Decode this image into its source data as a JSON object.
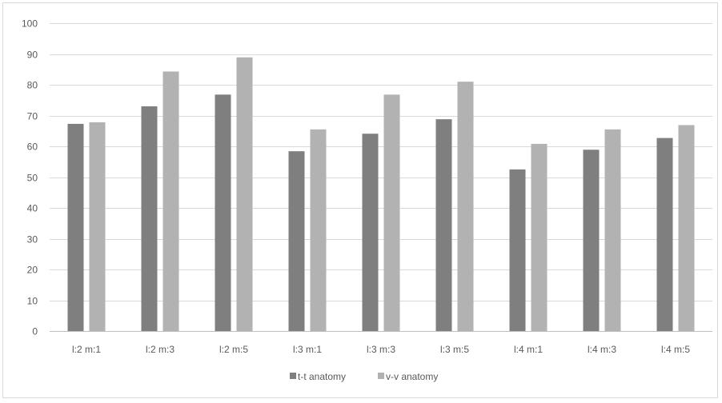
{
  "chart_data": {
    "type": "bar",
    "categories": [
      "l:2 m:1",
      "l:2 m:3",
      "l:2 m:5",
      "l:3 m:1",
      "l:3 m:3",
      "l:3 m:5",
      "l:4 m:1",
      "l:4 m:3",
      "l:4 m:5"
    ],
    "series": [
      {
        "name": "t-t anatomy",
        "color": "#7f7f7f",
        "values": [
          67.3,
          73.0,
          76.8,
          58.4,
          64.1,
          68.8,
          52.5,
          58.9,
          62.7
        ]
      },
      {
        "name": "v-v anatomy",
        "color": "#b2b2b2",
        "values": [
          67.8,
          84.3,
          88.9,
          65.5,
          76.8,
          81.0,
          60.8,
          65.5,
          66.9
        ]
      }
    ],
    "ylim": [
      0,
      100
    ],
    "yticks": [
      "0",
      "10",
      "20",
      "30",
      "40",
      "50",
      "60",
      "70",
      "80",
      "90",
      "100"
    ],
    "title": "",
    "xlabel": "",
    "ylabel": "",
    "grid": true,
    "legend_position": "bottom"
  }
}
